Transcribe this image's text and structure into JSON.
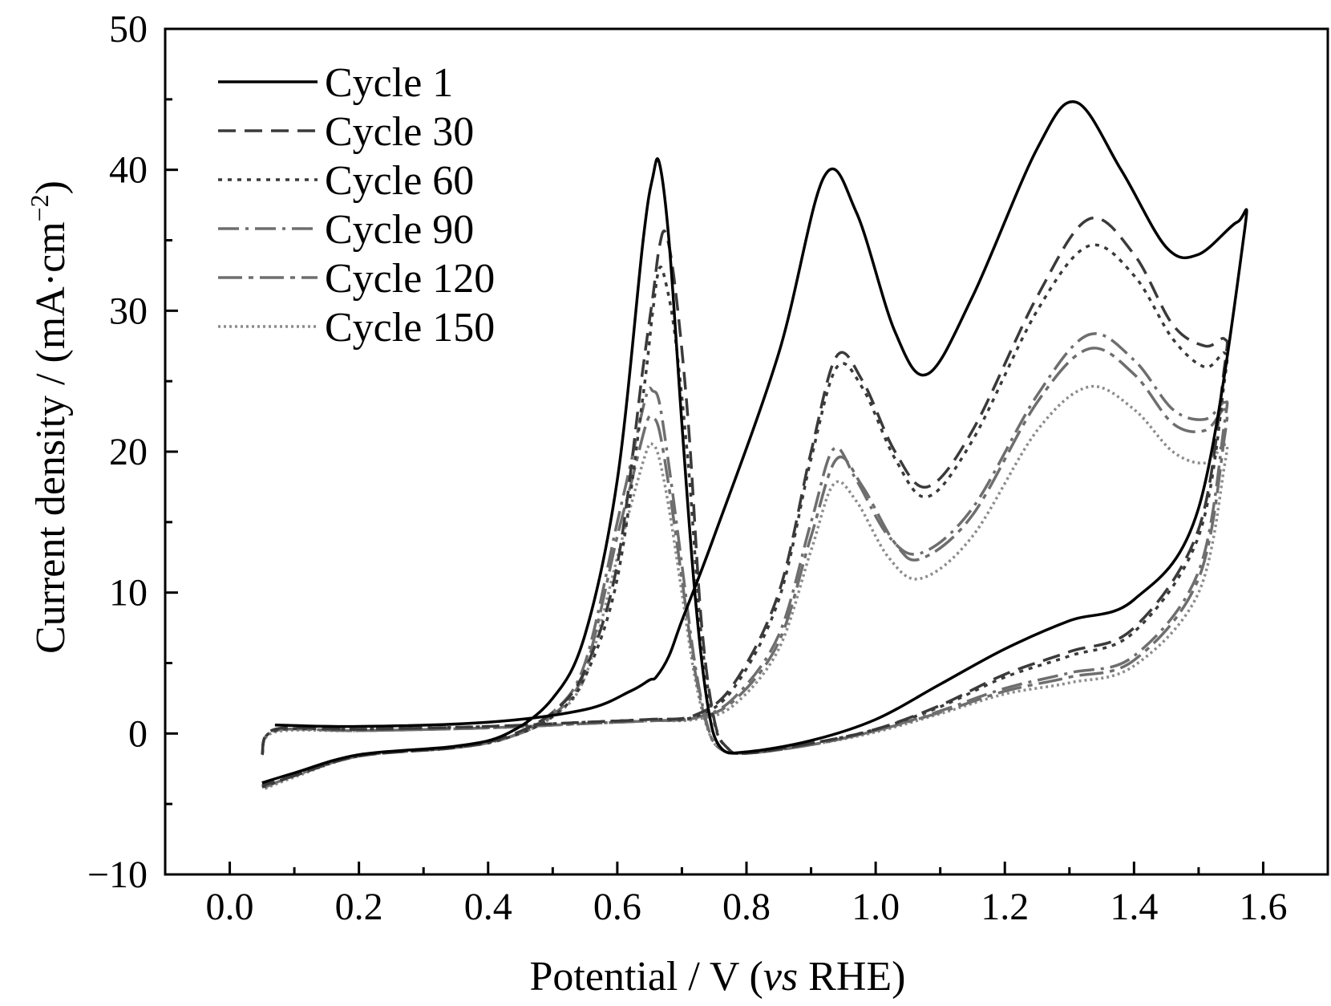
{
  "chart_data": {
    "type": "line",
    "xlabel": {
      "prefix": "Potential / V (",
      "italic": "vs",
      "suffix": " RHE)"
    },
    "ylabel": {
      "main": "Current density / (mA·cm",
      "sup": "−2",
      "close": ")"
    },
    "xlim": [
      -0.1,
      1.7
    ],
    "ylim": [
      -10,
      50
    ],
    "xticks": [
      0.0,
      0.2,
      0.4,
      0.6,
      0.8,
      1.0,
      1.2,
      1.4,
      1.6
    ],
    "xtick_labels": [
      "0.0",
      "0.2",
      "0.4",
      "0.6",
      "0.8",
      "1.0",
      "1.2",
      "1.4",
      "1.6"
    ],
    "yticks": [
      -10,
      0,
      10,
      20,
      30,
      40,
      50
    ],
    "ytick_labels": [
      "−10",
      "0",
      "10",
      "20",
      "30",
      "40",
      "50"
    ],
    "legend_position": "top-left",
    "grid": false,
    "series": [
      {
        "name": "Cycle 1",
        "color": "#000000",
        "dash": "solid",
        "x": [
          0.07,
          0.2,
          0.4,
          0.55,
          0.62,
          0.65,
          0.66,
          0.68,
          0.7,
          0.75,
          0.85,
          0.92,
          0.97,
          1.03,
          1.08,
          1.15,
          1.25,
          1.31,
          1.38,
          1.45,
          1.5,
          1.56,
          1.57,
          1.5,
          1.4,
          1.3,
          1.2,
          1.1,
          1.0,
          0.9,
          0.8,
          0.76,
          0.74,
          0.72,
          0.7,
          0.68,
          0.665,
          0.655,
          0.64,
          0.6,
          0.55,
          0.5,
          0.43,
          0.35,
          0.2,
          0.1,
          0.05
        ],
        "y": [
          0.6,
          0.5,
          0.8,
          1.7,
          3.0,
          3.8,
          4.0,
          5.5,
          8.0,
          14.0,
          27.0,
          39.5,
          37.0,
          28.5,
          25.5,
          31.0,
          41.5,
          44.8,
          40.0,
          34.5,
          34.0,
          36.3,
          35.3,
          16.0,
          9.5,
          8.0,
          6.0,
          3.5,
          1.0,
          -0.5,
          -1.3,
          -1.0,
          2.0,
          10.0,
          22.0,
          35.0,
          40.5,
          39.5,
          35.0,
          18.0,
          7.0,
          2.5,
          0.0,
          -0.9,
          -1.5,
          -2.8,
          -3.5
        ]
      },
      {
        "name": "Cycle 30",
        "color": "#3a3a3a",
        "dash": "22 11",
        "x": [
          0.05,
          0.07,
          0.2,
          0.4,
          0.55,
          0.65,
          0.72,
          0.78,
          0.85,
          0.9,
          0.94,
          0.98,
          1.03,
          1.08,
          1.15,
          1.25,
          1.33,
          1.4,
          1.46,
          1.51,
          1.54,
          1.54,
          1.5,
          1.4,
          1.3,
          1.2,
          1.1,
          1.0,
          0.9,
          0.8,
          0.77,
          0.75,
          0.73,
          0.71,
          0.69,
          0.675,
          0.665,
          0.655,
          0.64,
          0.6,
          0.55,
          0.5,
          0.43,
          0.35,
          0.2,
          0.1,
          0.05
        ],
        "y": [
          -1.5,
          0.3,
          0.3,
          0.5,
          0.8,
          1.0,
          1.3,
          3.5,
          10.0,
          20.0,
          26.8,
          25.0,
          20.0,
          17.5,
          21.5,
          31.0,
          36.5,
          34.0,
          29.0,
          27.5,
          28.0,
          26.0,
          14.5,
          7.5,
          5.8,
          4.2,
          2.0,
          0.3,
          -0.7,
          -1.4,
          -1.0,
          1.0,
          8.0,
          22.0,
          31.5,
          35.5,
          34.5,
          31.0,
          26.0,
          12.0,
          4.5,
          1.5,
          -0.2,
          -1.0,
          -1.6,
          -3.0,
          -3.7
        ]
      },
      {
        "name": "Cycle 60",
        "color": "#3a3a3a",
        "dash": "5 7",
        "x": [
          0.05,
          0.07,
          0.2,
          0.4,
          0.55,
          0.65,
          0.72,
          0.78,
          0.85,
          0.9,
          0.94,
          0.98,
          1.03,
          1.08,
          1.15,
          1.25,
          1.33,
          1.4,
          1.46,
          1.51,
          1.54,
          1.54,
          1.5,
          1.4,
          1.3,
          1.2,
          1.1,
          1.0,
          0.9,
          0.8,
          0.77,
          0.75,
          0.73,
          0.71,
          0.69,
          0.675,
          0.665,
          0.655,
          0.64,
          0.6,
          0.55,
          0.5,
          0.43,
          0.35,
          0.2,
          0.1,
          0.05
        ],
        "y": [
          -1.5,
          0.2,
          0.3,
          0.5,
          0.8,
          1.0,
          1.2,
          3.2,
          9.5,
          19.5,
          26.0,
          24.5,
          19.5,
          16.8,
          20.8,
          30.0,
          34.6,
          32.5,
          28.0,
          26.0,
          27.0,
          25.0,
          14.0,
          7.2,
          5.5,
          4.0,
          1.9,
          0.3,
          -0.7,
          -1.4,
          -1.0,
          0.8,
          7.0,
          19.0,
          28.0,
          32.0,
          33.0,
          30.0,
          24.0,
          11.0,
          4.0,
          1.2,
          -0.3,
          -1.0,
          -1.6,
          -3.0,
          -3.8
        ]
      },
      {
        "name": "Cycle 90",
        "color": "#6e6e6e",
        "dash": "26 8 4 8",
        "x": [
          0.05,
          0.07,
          0.2,
          0.4,
          0.55,
          0.65,
          0.72,
          0.78,
          0.85,
          0.9,
          0.935,
          0.97,
          1.02,
          1.07,
          1.15,
          1.25,
          1.33,
          1.4,
          1.46,
          1.51,
          1.54,
          1.54,
          1.5,
          1.4,
          1.3,
          1.2,
          1.1,
          1.0,
          0.9,
          0.8,
          0.76,
          0.74,
          0.72,
          0.7,
          0.68,
          0.665,
          0.655,
          0.645,
          0.62,
          0.6,
          0.55,
          0.5,
          0.43,
          0.35,
          0.2,
          0.1,
          0.05
        ],
        "y": [
          -1.5,
          0.2,
          0.2,
          0.4,
          0.7,
          0.9,
          1.1,
          2.5,
          7.0,
          15.0,
          20.2,
          18.0,
          14.0,
          12.8,
          16.0,
          24.0,
          28.3,
          26.5,
          23.0,
          22.3,
          23.5,
          22.0,
          11.5,
          5.5,
          4.3,
          3.2,
          1.6,
          0.2,
          -0.8,
          -1.4,
          -1.1,
          0.5,
          5.0,
          12.0,
          19.0,
          23.5,
          24.3,
          24.0,
          19.0,
          15.0,
          5.0,
          1.5,
          -0.3,
          -1.0,
          -1.6,
          -3.0,
          -3.8
        ]
      },
      {
        "name": "Cycle 120",
        "color": "#6e6e6e",
        "dash": "30 8 6 8",
        "x": [
          0.05,
          0.07,
          0.2,
          0.4,
          0.55,
          0.65,
          0.72,
          0.78,
          0.85,
          0.9,
          0.94,
          0.98,
          1.03,
          1.07,
          1.15,
          1.25,
          1.33,
          1.4,
          1.46,
          1.51,
          1.54,
          1.54,
          1.5,
          1.4,
          1.3,
          1.2,
          1.1,
          1.0,
          0.9,
          0.8,
          0.76,
          0.74,
          0.72,
          0.7,
          0.68,
          0.665,
          0.655,
          0.645,
          0.62,
          0.6,
          0.55,
          0.5,
          0.43,
          0.35,
          0.2,
          0.1,
          0.05
        ],
        "y": [
          -1.5,
          0.2,
          0.2,
          0.4,
          0.7,
          0.9,
          1.1,
          2.3,
          6.5,
          14.0,
          19.5,
          17.5,
          13.5,
          12.4,
          15.5,
          23.5,
          27.3,
          25.5,
          22.0,
          21.5,
          23.0,
          21.0,
          11.0,
          5.2,
          4.0,
          3.0,
          1.5,
          0.2,
          -0.8,
          -1.4,
          -1.1,
          0.4,
          4.5,
          11.0,
          17.5,
          21.5,
          22.4,
          22.0,
          17.5,
          14.0,
          4.5,
          1.3,
          -0.3,
          -1.0,
          -1.6,
          -3.0,
          -3.9
        ]
      },
      {
        "name": "Cycle 150",
        "color": "#8c8c8c",
        "dash": "3 4",
        "x": [
          0.05,
          0.07,
          0.2,
          0.4,
          0.55,
          0.65,
          0.72,
          0.78,
          0.85,
          0.9,
          0.935,
          0.97,
          1.02,
          1.07,
          1.15,
          1.25,
          1.33,
          1.4,
          1.46,
          1.51,
          1.54,
          1.54,
          1.5,
          1.4,
          1.3,
          1.2,
          1.1,
          1.0,
          0.9,
          0.8,
          0.76,
          0.74,
          0.72,
          0.7,
          0.68,
          0.665,
          0.655,
          0.645,
          0.62,
          0.6,
          0.55,
          0.5,
          0.43,
          0.35,
          0.2,
          0.1,
          0.05
        ],
        "y": [
          -1.5,
          0.1,
          0.2,
          0.4,
          0.7,
          0.9,
          1.0,
          2.0,
          6.0,
          13.0,
          17.7,
          16.5,
          12.5,
          11.0,
          14.0,
          21.5,
          24.6,
          23.0,
          20.0,
          19.2,
          20.5,
          19.0,
          10.0,
          4.8,
          3.6,
          2.8,
          1.4,
          0.1,
          -0.8,
          -1.4,
          -1.1,
          0.3,
          4.0,
          10.0,
          16.0,
          19.5,
          20.5,
          20.0,
          16.0,
          12.5,
          4.0,
          1.2,
          -0.3,
          -1.0,
          -1.6,
          -3.1,
          -4.0
        ]
      }
    ]
  }
}
